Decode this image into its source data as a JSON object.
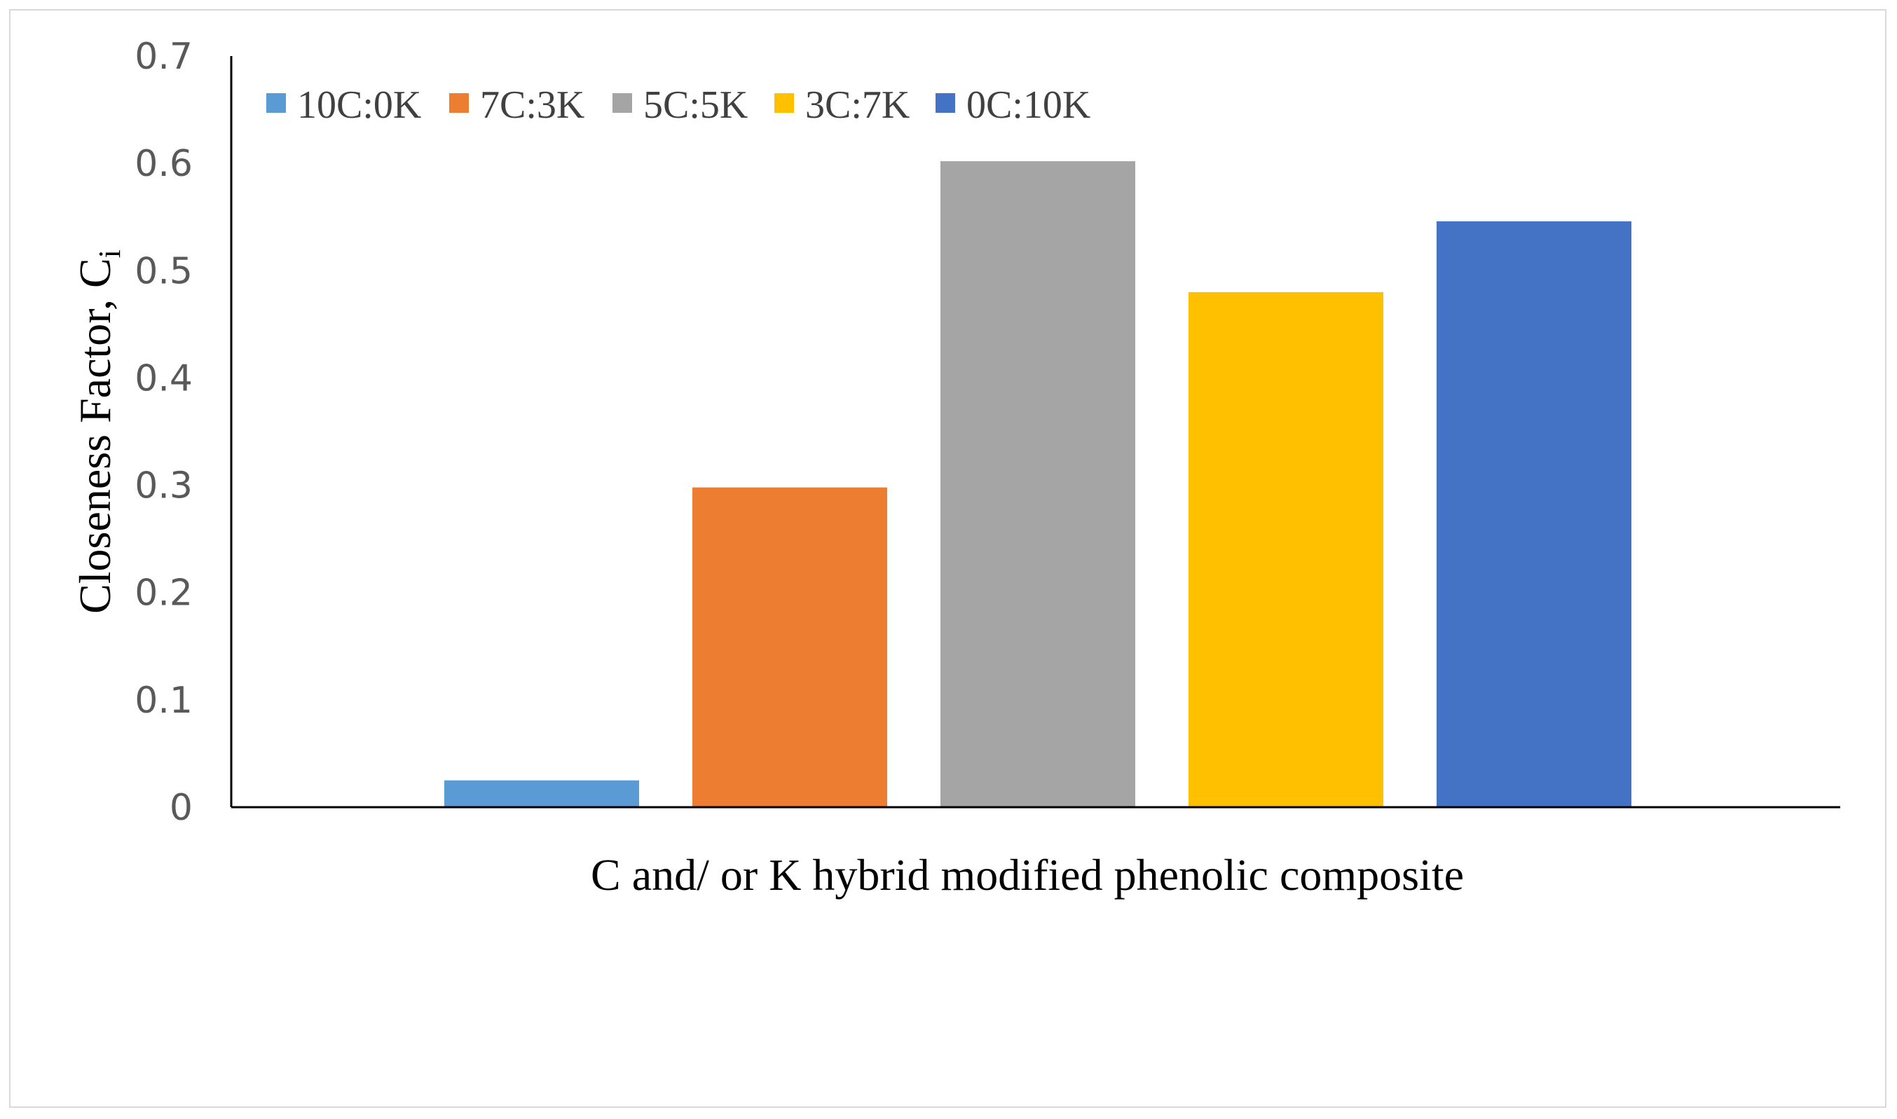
{
  "chart_data": {
    "type": "bar",
    "categories": [
      "10C:0K",
      "7C:3K",
      "5C:5K",
      "3C:7K",
      "0C:10K"
    ],
    "values": [
      0.025,
      0.298,
      0.602,
      0.48,
      0.546
    ],
    "colors": [
      "#5b9bd5",
      "#ed7d31",
      "#a5a5a5",
      "#ffc000",
      "#4472c4"
    ],
    "xlabel": "C and/ or K hybrid modified phenolic composite",
    "ylabel": "Closeness Factor, C",
    "ylabel_subscript": "i",
    "ylim": [
      0,
      0.7
    ],
    "yticks": [
      "0",
      "0.1",
      "0.2",
      "0.3",
      "0.4",
      "0.5",
      "0.6",
      "0.7"
    ],
    "legend_position": "top-left",
    "grid": false
  }
}
